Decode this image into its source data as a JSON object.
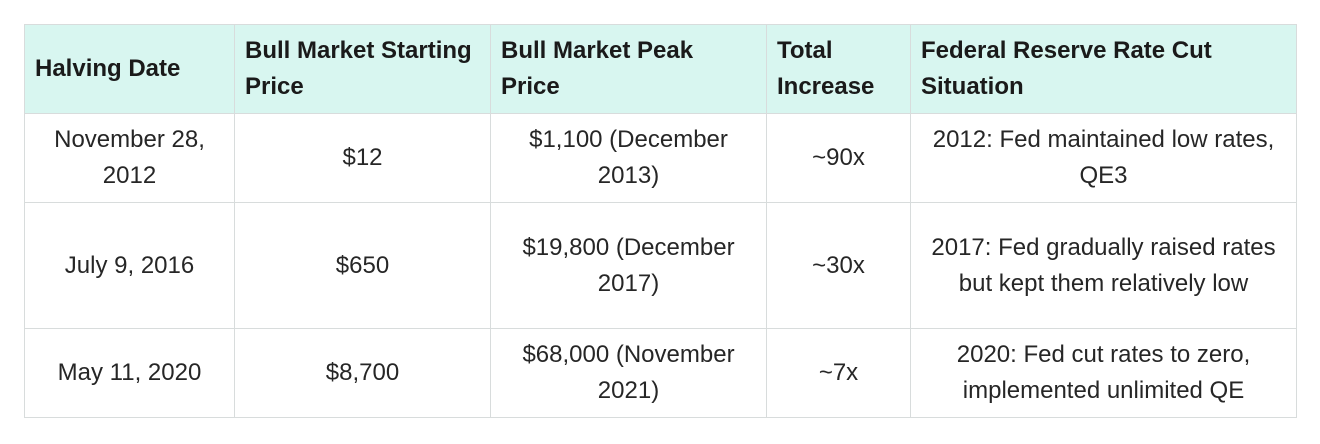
{
  "table": {
    "headers": [
      "Halving Date",
      "Bull Market Starting Price",
      "Bull Market Peak Price",
      "Total Increase",
      "Federal Reserve Rate Cut Situation"
    ],
    "rows": [
      {
        "halving_date": "November 28, 2012",
        "starting_price": "$12",
        "peak_price": "$1,100 (December 2013)",
        "total_increase": "~90x",
        "fed_situation": "2012: Fed maintained low rates, QE3"
      },
      {
        "halving_date": "July 9, 2016",
        "starting_price": "$650",
        "peak_price": "$19,800 (December 2017)",
        "total_increase": "~30x",
        "fed_situation": "2017: Fed gradually raised rates but kept them relatively low"
      },
      {
        "halving_date": "May 11, 2020",
        "starting_price": "$8,700",
        "peak_price": "$68,000 (November 2021)",
        "total_increase": "~7x",
        "fed_situation": "2020: Fed cut rates to zero, implemented unlimited QE"
      }
    ]
  },
  "colors": {
    "header_background": "#d8f6f0",
    "border": "#d8dcdc"
  }
}
